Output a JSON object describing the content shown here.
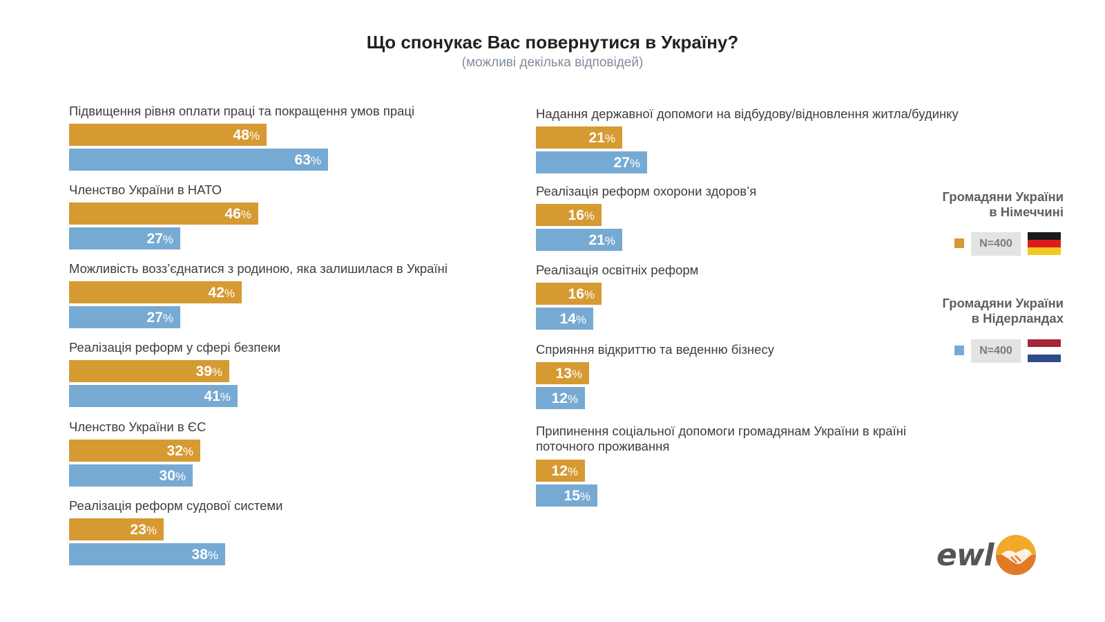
{
  "title": "Що спонукає Вас повернутися в Україну?",
  "subtitle": "(можливі декілька відповідей)",
  "legend": [
    {
      "title_line1": "Громадяни України",
      "title_line2": "в Німеччині",
      "n": "N=400",
      "color": "#d69a32",
      "flag": "germany-flag"
    },
    {
      "title_line1": "Громадяни України",
      "title_line2": "в Нідерландах",
      "n": "N=400",
      "color": "#77aad3",
      "flag": "netherlands-flag"
    }
  ],
  "logo": {
    "text": "ewl",
    "icon": "handshake-icon"
  },
  "chart_data": {
    "type": "bar",
    "orientation": "horizontal",
    "title": "Що спонукає Вас повернутися в Україну?",
    "subtitle": "(можливі декілька відповідей)",
    "unit": "%",
    "xlim": [
      0,
      100
    ],
    "grid": false,
    "legend_position": "right",
    "series": [
      {
        "name": "Громадяни України в Німеччині",
        "n": "N=400",
        "color": "#d69a32",
        "values": [
          48,
          46,
          42,
          39,
          32,
          23,
          21,
          16,
          16,
          13,
          12
        ]
      },
      {
        "name": "Громадяни України в Нідерландах",
        "n": "N=400",
        "color": "#77aad3",
        "values": [
          63,
          27,
          27,
          41,
          30,
          38,
          27,
          21,
          14,
          12,
          15
        ]
      }
    ],
    "categories": [
      {
        "line1": "Підвищення рівня оплати праці та покращення умов праці",
        "line2": ""
      },
      {
        "line1": "Членство України в НАТО",
        "line2": ""
      },
      {
        "line1": "Можливість возз’єднатися з родиною, яка залишилася в Україні",
        "line2": ""
      },
      {
        "line1": "Реалізація реформ у сфері безпеки",
        "line2": ""
      },
      {
        "line1": "Членство України в ЄС",
        "line2": ""
      },
      {
        "line1": "Реалізація реформ судової системи",
        "line2": ""
      },
      {
        "line1": "Надання державної допомоги на відбудову/відновлення житла/будинку",
        "line2": ""
      },
      {
        "line1": "Реалізація реформ охорони здоров’я",
        "line2": ""
      },
      {
        "line1": "Реалізація освітніх реформ",
        "line2": ""
      },
      {
        "line1": "Сприяння відкриттю та веденню бізнесу",
        "line2": ""
      },
      {
        "line1": "Припинення соціальної допомоги громадянам України в країні",
        "line2": "поточного проживання"
      }
    ]
  }
}
